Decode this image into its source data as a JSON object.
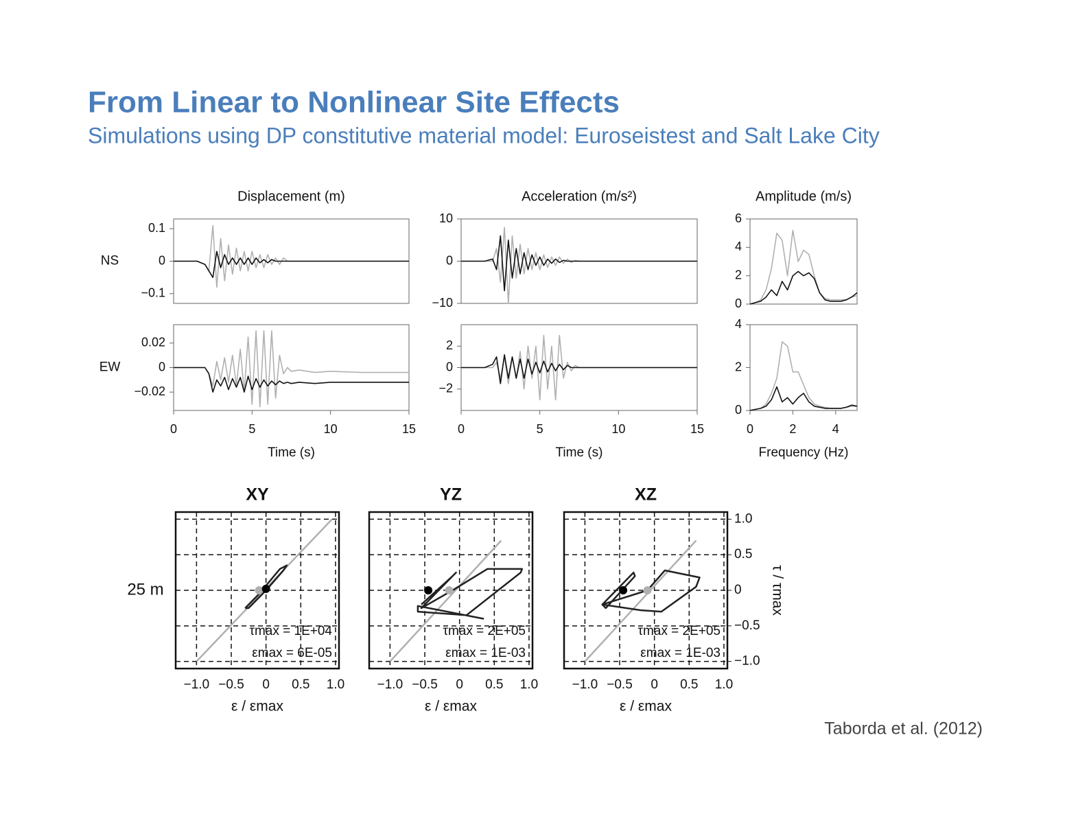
{
  "header": {
    "title": "From Linear to Nonlinear Site Effects",
    "subtitle": "Simulations using DP constitutive material model: Euroseistest and Salt Lake City"
  },
  "citation": "Taborda et al. (2012)",
  "chart_data": [
    {
      "type": "line",
      "title": "Displacement (m)",
      "row_label": "NS",
      "ytick_labels": "left",
      "x": [
        0,
        1,
        1.5,
        2,
        2.25,
        2.5,
        2.75,
        3,
        3.25,
        3.5,
        3.75,
        4,
        4.25,
        4.5,
        4.75,
        5,
        5.25,
        5.5,
        5.75,
        6,
        6.25,
        6.5,
        6.75,
        7,
        7.25,
        7.5,
        8,
        9,
        10,
        12,
        15
      ],
      "xlim": [
        0,
        15
      ],
      "ylim": [
        -0.13,
        0.13
      ],
      "yticks": [
        0.1,
        0,
        {
          "value": -0.1,
          "label": "−0.1"
        }
      ],
      "series": [
        {
          "color": "#b0b0b0",
          "values": [
            0,
            0,
            0,
            -0.01,
            -0.03,
            0.11,
            -0.08,
            0.07,
            -0.06,
            0.05,
            -0.04,
            0.04,
            -0.03,
            0.03,
            -0.03,
            0.03,
            -0.02,
            0.02,
            -0.02,
            0.02,
            -0.01,
            0.01,
            -0.01,
            0.01,
            0,
            0,
            0,
            0,
            0,
            0,
            0
          ]
        },
        {
          "color": "#111111",
          "values": [
            0,
            0,
            0,
            -0.01,
            -0.03,
            -0.05,
            0.03,
            -0.02,
            0.02,
            -0.01,
            0.01,
            -0.01,
            0.01,
            -0.01,
            0.01,
            -0.01,
            0.01,
            -0.005,
            0.005,
            -0.005,
            0.005,
            0,
            0,
            0,
            0,
            0,
            0,
            0,
            0,
            0,
            0
          ]
        }
      ]
    },
    {
      "type": "line",
      "title": "Acceleration (m/s²)",
      "ytick_labels": "left",
      "x": [
        0,
        1,
        1.5,
        2,
        2.25,
        2.5,
        2.75,
        3,
        3.25,
        3.5,
        3.75,
        4,
        4.25,
        4.5,
        4.75,
        5,
        5.25,
        5.5,
        5.75,
        6,
        6.25,
        6.5,
        6.75,
        7,
        7.25,
        7.5,
        8,
        9,
        10,
        12,
        15
      ],
      "xlim": [
        0,
        15
      ],
      "ylim": [
        -10,
        10
      ],
      "yticks": [
        10,
        0,
        {
          "value": -10,
          "label": "−10"
        }
      ],
      "series": [
        {
          "color": "#b0b0b0",
          "values": [
            0,
            0,
            0,
            0,
            3,
            -5,
            8,
            -10,
            6,
            -4,
            4,
            -3,
            3,
            -2,
            2,
            -2,
            1.5,
            -1.5,
            1,
            -1,
            1,
            -0.5,
            0.5,
            -0.3,
            0.2,
            0,
            0,
            0,
            0,
            0,
            0
          ]
        },
        {
          "color": "#111111",
          "values": [
            0,
            0,
            0,
            0.5,
            -2,
            6,
            -7,
            5,
            -4,
            3,
            -3,
            2,
            -2,
            1.5,
            -1,
            1,
            -1,
            0.5,
            -0.5,
            0.5,
            -0.3,
            0.2,
            0,
            0,
            0,
            0,
            0,
            0,
            0,
            0,
            0
          ]
        }
      ]
    },
    {
      "type": "line",
      "title": "Amplitude (m/s)",
      "ytick_labels": "left",
      "x": [
        0,
        0.25,
        0.5,
        0.75,
        1,
        1.25,
        1.5,
        1.75,
        2,
        2.25,
        2.5,
        2.75,
        3,
        3.25,
        3.5,
        3.75,
        4,
        4.25,
        4.5,
        4.75,
        5
      ],
      "xlim": [
        0,
        5
      ],
      "ylim": [
        0,
        6
      ],
      "yticks": [
        0,
        2,
        4,
        6
      ],
      "series": [
        {
          "color": "#b0b0b0",
          "values": [
            0,
            0.1,
            0.3,
            1,
            2.5,
            5,
            4.5,
            2,
            5.2,
            3,
            3.8,
            3.5,
            2,
            0.8,
            0.4,
            0.3,
            0.3,
            0.3,
            0.3,
            0.5,
            0.6
          ]
        },
        {
          "color": "#111111",
          "values": [
            0,
            0.1,
            0.2,
            0.5,
            1,
            0.6,
            1.6,
            1,
            2,
            2.3,
            2,
            2.2,
            1.8,
            0.8,
            0.3,
            0.2,
            0.2,
            0.2,
            0.3,
            0.5,
            0.8
          ]
        }
      ]
    },
    {
      "type": "line",
      "row_label": "EW",
      "xlabel": "Time (s)",
      "ytick_labels": "left",
      "x": [
        0,
        1,
        1.5,
        2,
        2.25,
        2.5,
        2.75,
        3,
        3.25,
        3.5,
        3.75,
        4,
        4.25,
        4.5,
        4.75,
        5,
        5.25,
        5.5,
        5.75,
        6,
        6.25,
        6.5,
        6.75,
        7,
        7.25,
        7.5,
        8,
        9,
        10,
        12,
        15
      ],
      "xlim": [
        0,
        15
      ],
      "ylim": [
        -0.035,
        0.035
      ],
      "xticks": [
        0,
        5,
        10,
        15
      ],
      "yticks": [
        0.02,
        0,
        {
          "value": -0.02,
          "label": "−0.02"
        }
      ],
      "series": [
        {
          "color": "#b0b0b0",
          "values": [
            0,
            0,
            0,
            0,
            -0.005,
            -0.015,
            0.005,
            -0.01,
            0.008,
            -0.012,
            0.01,
            -0.015,
            0.015,
            -0.02,
            0.025,
            -0.03,
            0.03,
            -0.032,
            0.03,
            -0.03,
            0.03,
            -0.025,
            0.01,
            -0.005,
            0,
            -0.003,
            -0.002,
            -0.004,
            -0.003,
            -0.004,
            -0.004
          ]
        },
        {
          "color": "#111111",
          "values": [
            0,
            0,
            0,
            0,
            -0.005,
            -0.02,
            -0.01,
            -0.015,
            -0.008,
            -0.018,
            -0.009,
            -0.016,
            -0.008,
            -0.02,
            -0.007,
            -0.018,
            -0.009,
            -0.016,
            -0.01,
            -0.015,
            -0.011,
            -0.014,
            -0.011,
            -0.013,
            -0.012,
            -0.013,
            -0.012,
            -0.013,
            -0.012,
            -0.012,
            -0.012
          ]
        }
      ]
    },
    {
      "type": "line",
      "xlabel": "Time (s)",
      "ytick_labels": "left",
      "x": [
        0,
        1,
        1.5,
        2,
        2.25,
        2.5,
        2.75,
        3,
        3.25,
        3.5,
        3.75,
        4,
        4.25,
        4.5,
        4.75,
        5,
        5.25,
        5.5,
        5.75,
        6,
        6.25,
        6.5,
        6.75,
        7,
        7.25,
        7.5,
        8,
        9,
        10,
        12,
        15
      ],
      "xlim": [
        0,
        15
      ],
      "ylim": [
        -4,
        4
      ],
      "xticks": [
        0,
        5,
        10,
        15
      ],
      "yticks": [
        2,
        0,
        {
          "value": -2,
          "label": "−2"
        }
      ],
      "series": [
        {
          "color": "#b0b0b0",
          "values": [
            0,
            0,
            0,
            0,
            0.5,
            -1,
            1,
            -1.5,
            1,
            -1,
            1.5,
            -2,
            2,
            -1,
            2,
            -3,
            3,
            -2,
            2,
            -3,
            3,
            -1,
            0.5,
            -0.3,
            0.2,
            0,
            0,
            0,
            0,
            0,
            0
          ]
        },
        {
          "color": "#111111",
          "values": [
            0,
            0,
            0,
            0.3,
            1,
            -1.5,
            1.2,
            -1,
            1,
            -1,
            0.8,
            -1,
            0.8,
            -0.6,
            0.5,
            -0.5,
            0.6,
            -0.4,
            0.4,
            -0.3,
            0.3,
            -0.2,
            0.2,
            0,
            0,
            0,
            0,
            0,
            0,
            0,
            0
          ]
        }
      ]
    },
    {
      "type": "line",
      "xlabel": "Frequency (Hz)",
      "ytick_labels": "left",
      "x": [
        0,
        0.25,
        0.5,
        0.75,
        1,
        1.25,
        1.5,
        1.75,
        2,
        2.25,
        2.5,
        2.75,
        3,
        3.25,
        3.5,
        3.75,
        4,
        4.25,
        4.5,
        4.75,
        5
      ],
      "xlim": [
        0,
        5
      ],
      "ylim": [
        0,
        4
      ],
      "xticks": [
        0,
        2,
        4
      ],
      "yticks": [
        0,
        2,
        4
      ],
      "series": [
        {
          "color": "#b0b0b0",
          "values": [
            0,
            0.05,
            0.1,
            0.3,
            0.8,
            1.5,
            3.2,
            3,
            1.8,
            1.8,
            1.2,
            0.6,
            0.3,
            0.2,
            0.15,
            0.1,
            0.1,
            0.1,
            0.15,
            0.2,
            0.2
          ]
        },
        {
          "color": "#111111",
          "values": [
            0,
            0.05,
            0.1,
            0.2,
            0.5,
            1.1,
            0.4,
            0.6,
            0.3,
            0.6,
            0.8,
            0.4,
            0.2,
            0.15,
            0.1,
            0.1,
            0.1,
            0.1,
            0.15,
            0.25,
            0.2
          ]
        }
      ]
    },
    {
      "type": "line",
      "title": "XY",
      "row_label": "25 m",
      "xlabel": "ε / εmax",
      "grid": true,
      "ytick_labels": "none",
      "annotations": [
        "τmax = 1E+04",
        "εmax = 6E-05"
      ],
      "xlim": [
        -1.3,
        1.05
      ],
      "ylim": [
        -1.1,
        1.1
      ],
      "xticks": [
        {
          "value": -1,
          "label": "−1.0"
        },
        {
          "value": -0.5,
          "label": "−0.5"
        },
        0,
        0.5,
        {
          "value": 1,
          "label": "1.0"
        }
      ],
      "yticks": [
        {
          "value": 1,
          "label": "1.0"
        },
        0.5,
        0,
        {
          "value": -0.5,
          "label": "−0.5"
        },
        {
          "value": -1,
          "label": "−1.0"
        }
      ],
      "series": [
        {
          "color": "#b0b0b0",
          "x": [
            -1,
            0.95
          ],
          "values": [
            -1,
            1
          ]
        },
        {
          "color": "#222222",
          "x": [
            -0.3,
            -0.1,
            0.2,
            0.3,
            0.25,
            0,
            -0.25,
            -0.3
          ],
          "values": [
            -0.25,
            -0.05,
            0.3,
            0.35,
            0.28,
            0,
            -0.25,
            -0.25
          ]
        },
        {
          "color": "#b0b0b0",
          "marker": "dot",
          "x": [
            -0.1
          ],
          "values": [
            0
          ]
        },
        {
          "color": "#000000",
          "marker": "dot",
          "x": [
            0
          ],
          "values": [
            0.02
          ]
        }
      ]
    },
    {
      "type": "line",
      "title": "YZ",
      "xlabel": "ε / εmax",
      "grid": true,
      "ytick_labels": "none",
      "annotations": [
        "τmax = 2E+05",
        "εmax = 1E-03"
      ],
      "xlim": [
        -1.3,
        1.05
      ],
      "ylim": [
        -1.1,
        1.1
      ],
      "xticks": [
        {
          "value": -1,
          "label": "−1.0"
        },
        {
          "value": -0.5,
          "label": "−0.5"
        },
        0,
        0.5,
        {
          "value": 1,
          "label": "1.0"
        }
      ],
      "yticks": [
        {
          "value": 1,
          "label": "1.0"
        },
        0.5,
        0,
        {
          "value": -0.5,
          "label": "−0.5"
        },
        {
          "value": -1,
          "label": "−1.0"
        }
      ],
      "series": [
        {
          "color": "#b0b0b0",
          "x": [
            -1,
            0.6
          ],
          "values": [
            -1,
            0.7
          ]
        },
        {
          "color": "#222222",
          "x": [
            -0.55,
            -0.1,
            -0.05,
            -0.5,
            -0.55,
            -0.1,
            0.4,
            0.9,
            0.88,
            0.1,
            -0.6,
            -0.6,
            0.35
          ],
          "values": [
            -0.2,
            0.2,
            0.25,
            -0.2,
            -0.25,
            0,
            0.3,
            0.3,
            0.25,
            -0.35,
            -0.3,
            -0.22,
            -0.4
          ]
        },
        {
          "color": "#b0b0b0",
          "marker": "dot",
          "x": [
            -0.15
          ],
          "values": [
            0
          ]
        },
        {
          "color": "#000000",
          "marker": "dot",
          "x": [
            -0.45
          ],
          "values": [
            0
          ]
        }
      ]
    },
    {
      "type": "line",
      "title": "XZ",
      "xlabel": "ε / εmax",
      "ylabel": "τ / τmax",
      "grid": true,
      "ytick_labels": "right",
      "annotations": [
        "τmax = 2E+05",
        "εmax = 1E-03"
      ],
      "xlim": [
        -1.3,
        1.05
      ],
      "ylim": [
        -1.1,
        1.1
      ],
      "xticks": [
        {
          "value": -1,
          "label": "−1.0"
        },
        {
          "value": -0.5,
          "label": "−0.5"
        },
        0,
        0.5,
        {
          "value": 1,
          "label": "1.0"
        }
      ],
      "yticks": [
        {
          "value": 1,
          "label": "1.0"
        },
        0.5,
        0,
        {
          "value": -0.5,
          "label": "−0.5"
        },
        {
          "value": -1,
          "label": "−1.0"
        }
      ],
      "series": [
        {
          "color": "#b0b0b0",
          "x": [
            -1,
            0.6
          ],
          "values": [
            -1,
            0.7
          ]
        },
        {
          "color": "#222222",
          "x": [
            -0.75,
            -0.3,
            -0.28,
            -0.7,
            -0.75,
            -0.1,
            0.15,
            0.65,
            0.6,
            0.1,
            -0.2,
            -0.75
          ],
          "values": [
            -0.2,
            0.25,
            0.2,
            -0.25,
            -0.2,
            0,
            0.28,
            0.18,
            0.05,
            -0.3,
            -0.28,
            -0.2
          ]
        },
        {
          "color": "#b0b0b0",
          "marker": "dot",
          "x": [
            -0.1
          ],
          "values": [
            0
          ]
        },
        {
          "color": "#000000",
          "marker": "dot",
          "x": [
            -0.45
          ],
          "values": [
            0
          ]
        }
      ]
    }
  ]
}
